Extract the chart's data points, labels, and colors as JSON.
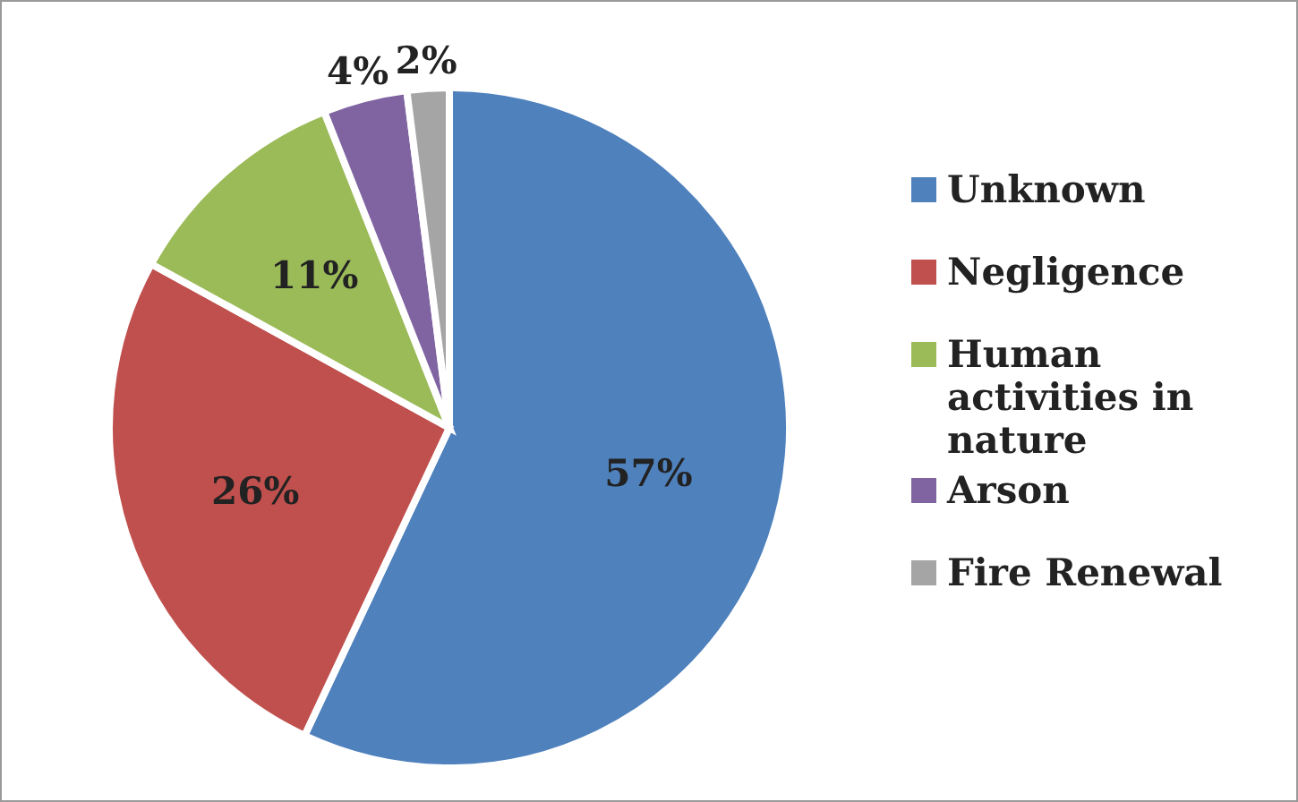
{
  "chart_data": {
    "type": "pie",
    "categories": [
      "Unknown",
      "Negligence",
      "Human activities in nature",
      "Arson",
      "Fire Renewal"
    ],
    "values": [
      57,
      26,
      11,
      4,
      2
    ],
    "colors": [
      "#4f81bd",
      "#c0504d",
      "#9bbb59",
      "#8064a2",
      "#a5a5a5"
    ],
    "value_labels": [
      "57%",
      "26%",
      "11%",
      "4%",
      "2%"
    ],
    "legend": "right"
  }
}
